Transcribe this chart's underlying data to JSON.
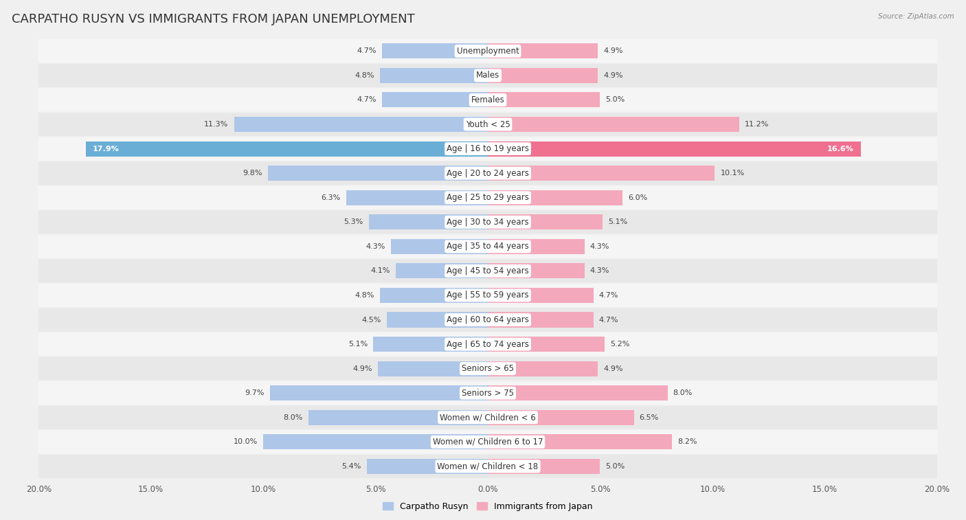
{
  "title": "CARPATHO RUSYN VS IMMIGRANTS FROM JAPAN UNEMPLOYMENT",
  "source": "Source: ZipAtlas.com",
  "categories": [
    "Unemployment",
    "Males",
    "Females",
    "Youth < 25",
    "Age | 16 to 19 years",
    "Age | 20 to 24 years",
    "Age | 25 to 29 years",
    "Age | 30 to 34 years",
    "Age | 35 to 44 years",
    "Age | 45 to 54 years",
    "Age | 55 to 59 years",
    "Age | 60 to 64 years",
    "Age | 65 to 74 years",
    "Seniors > 65",
    "Seniors > 75",
    "Women w/ Children < 6",
    "Women w/ Children 6 to 17",
    "Women w/ Children < 18"
  ],
  "left_values": [
    4.7,
    4.8,
    4.7,
    11.3,
    17.9,
    9.8,
    6.3,
    5.3,
    4.3,
    4.1,
    4.8,
    4.5,
    5.1,
    4.9,
    9.7,
    8.0,
    10.0,
    5.4
  ],
  "right_values": [
    4.9,
    4.9,
    5.0,
    11.2,
    16.6,
    10.1,
    6.0,
    5.1,
    4.3,
    4.3,
    4.7,
    4.7,
    5.2,
    4.9,
    8.0,
    6.5,
    8.2,
    5.0
  ],
  "left_color_normal": "#aec6e8",
  "left_color_highlight": "#6aaed6",
  "right_color_normal": "#f4a8bc",
  "right_color_highlight": "#f07090",
  "row_color_odd": "#f5f5f5",
  "row_color_even": "#e8e8e8",
  "background_color": "#f0f0f0",
  "max_val": 20.0,
  "highlight_threshold": 14.0,
  "legend_left": "Carpatho Rusyn",
  "legend_right": "Immigrants from Japan",
  "title_fontsize": 13,
  "label_fontsize": 8.5,
  "value_fontsize": 8.0,
  "axis_tick_fontsize": 8.5
}
